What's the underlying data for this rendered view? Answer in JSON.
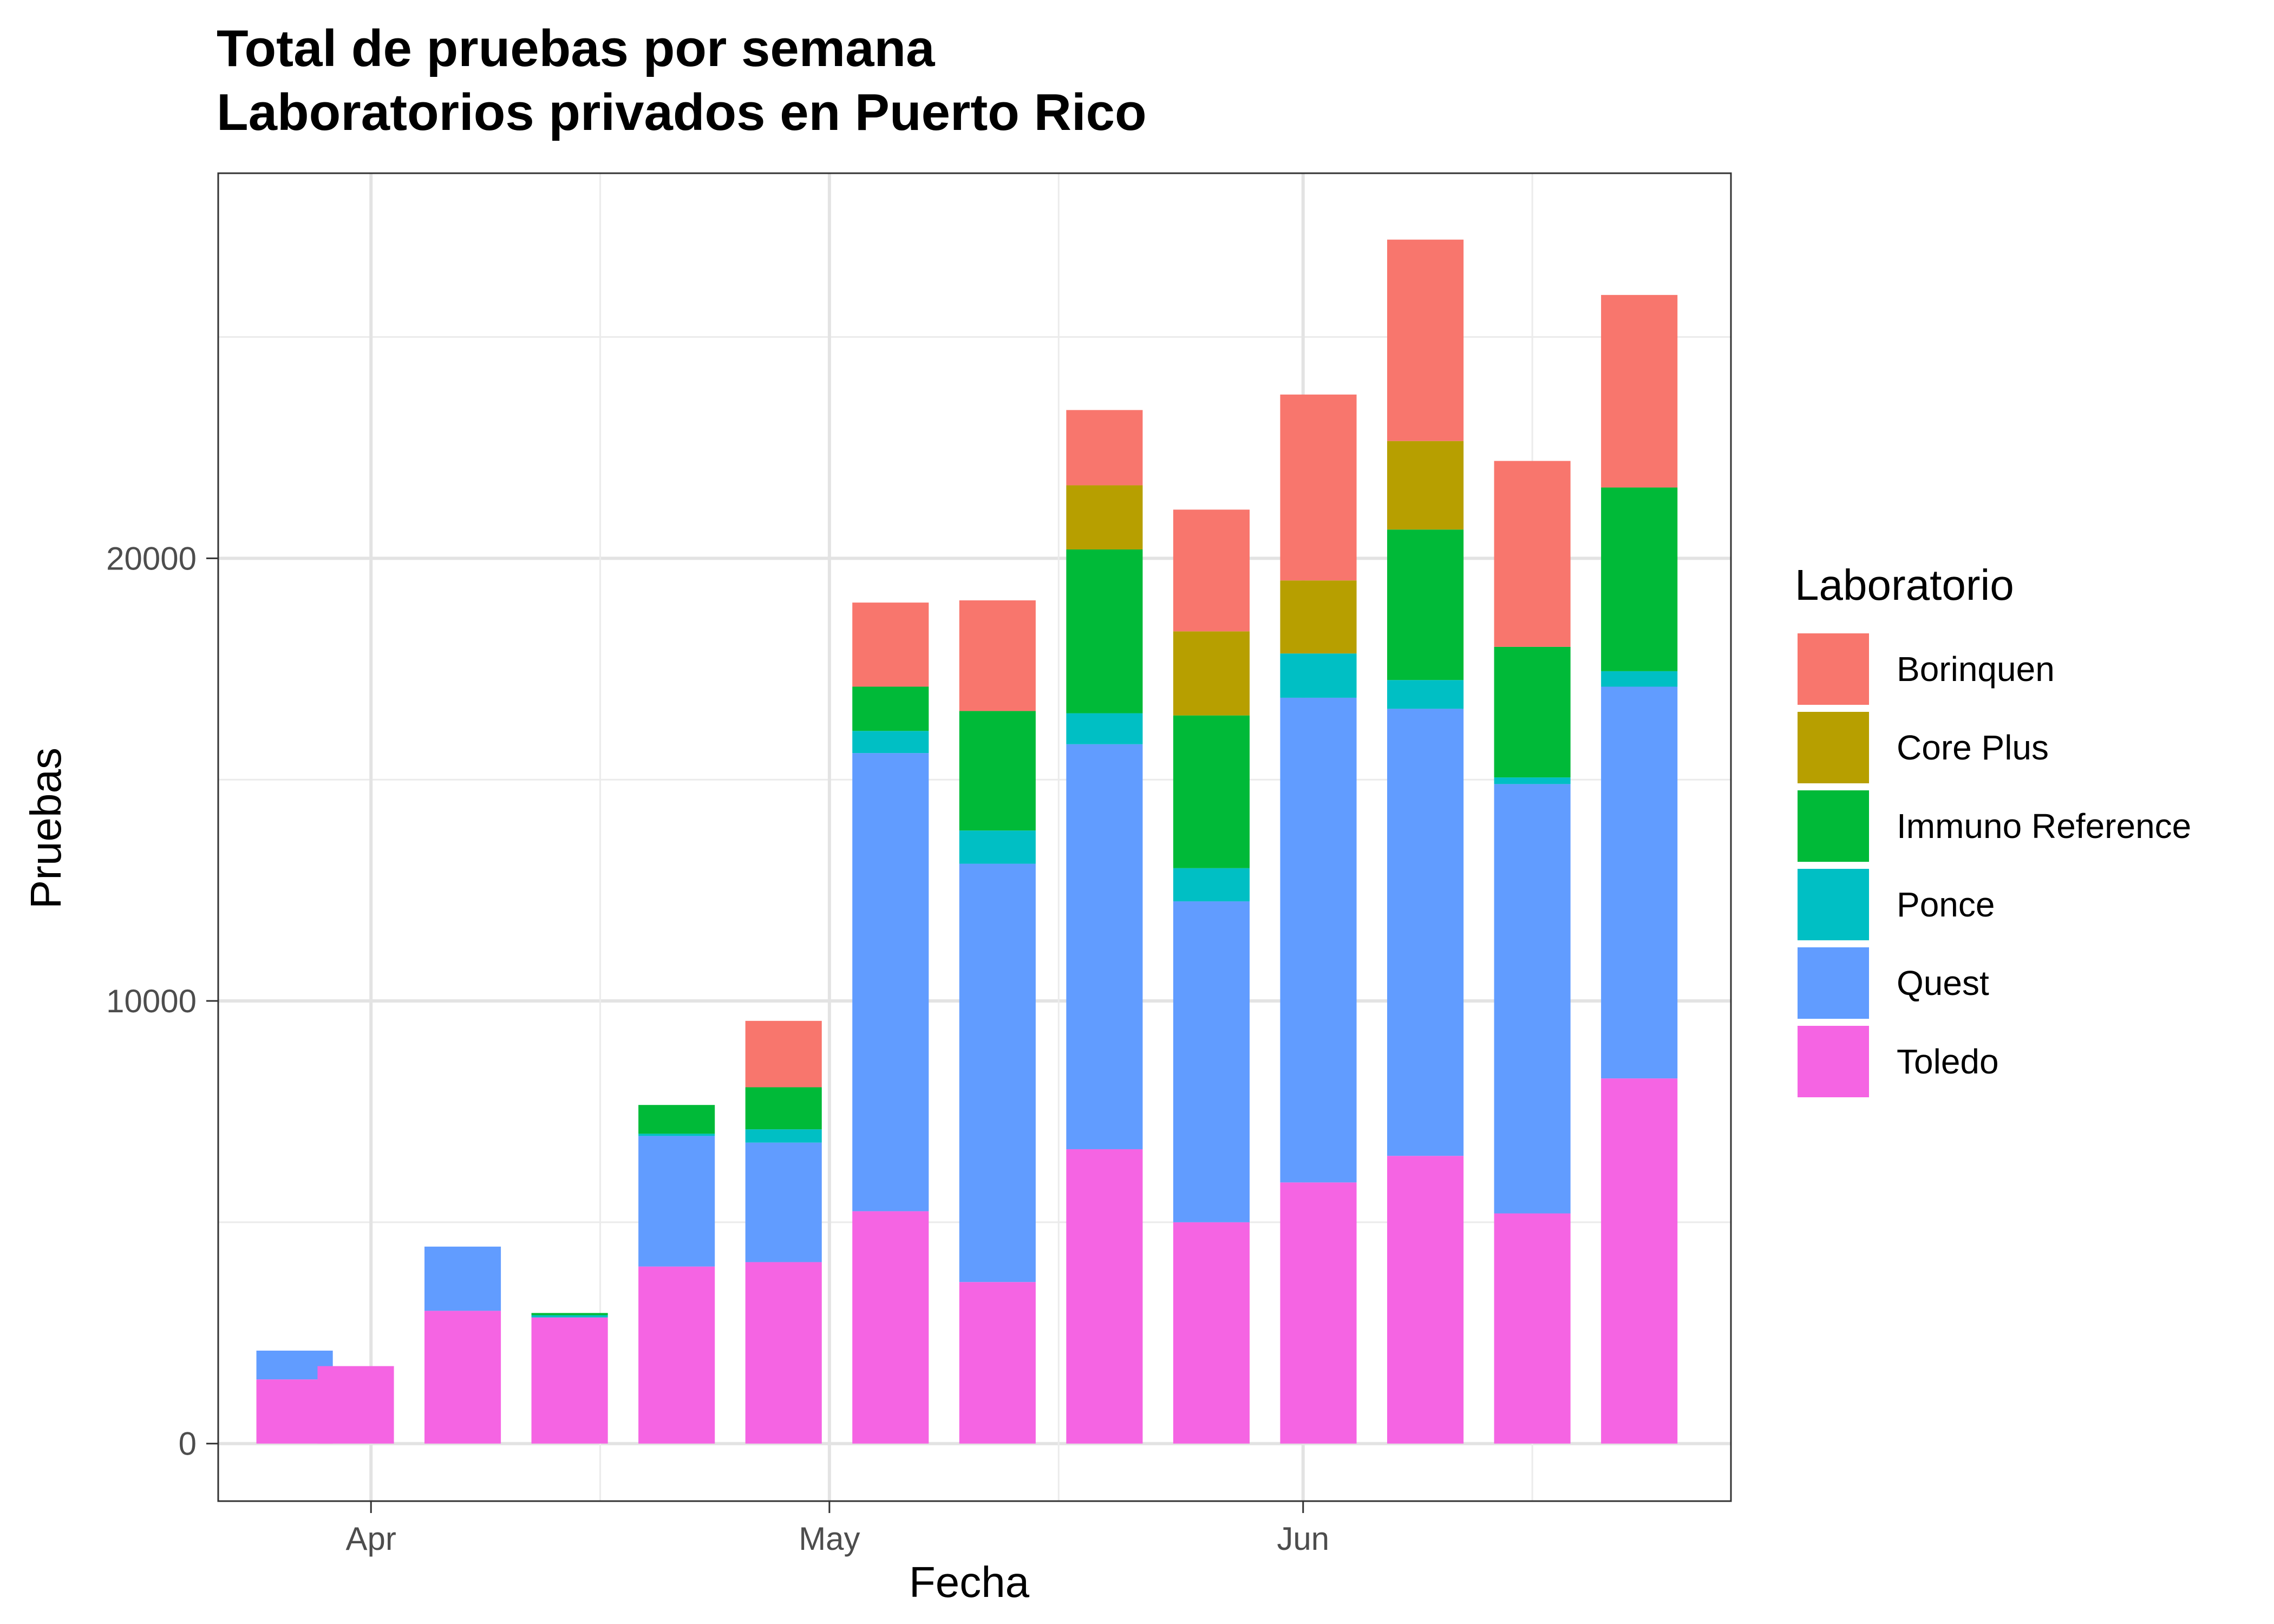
{
  "chart_data": {
    "type": "bar",
    "stacked": true,
    "title": "Total de pruebas por semana",
    "subtitle": "Laboratorios privados en Puerto Rico",
    "xlabel": "Fecha",
    "ylabel": "Pruebas",
    "x_ticks": [
      "Apr",
      "May",
      "Jun"
    ],
    "y_ticks": [
      "0",
      "10000",
      "20000"
    ],
    "ylim": [
      -1300,
      28700
    ],
    "grid": true,
    "legend": {
      "title": "Laboratorio",
      "position": "right",
      "entries": [
        "Borinquen",
        "Core Plus",
        "Immuno Reference",
        "Ponce",
        "Quest",
        "Toledo"
      ]
    },
    "colors": {
      "Borinquen": "#F8766D",
      "Core Plus": "#B79F00",
      "Immuno Reference": "#00BA38",
      "Ponce": "#00BFC4",
      "Quest": "#619CFF",
      "Toledo": "#F564E3"
    },
    "x": [
      "2020-03-27",
      "2020-03-31",
      "2020-04-07",
      "2020-04-14",
      "2020-04-21",
      "2020-04-28",
      "2020-05-05",
      "2020-05-12",
      "2020-05-19",
      "2020-05-26",
      "2020-06-02",
      "2020-06-09",
      "2020-06-16",
      "2020-06-23"
    ],
    "series": [
      {
        "name": "Toledo",
        "values": [
          1450,
          1750,
          3000,
          2850,
          4000,
          4100,
          5250,
          3650,
          6650,
          5000,
          5900,
          6500,
          5200,
          8250
        ]
      },
      {
        "name": "Quest",
        "values": [
          650,
          0,
          1450,
          0,
          2950,
          2700,
          10350,
          9450,
          9150,
          7250,
          10950,
          10100,
          9700,
          8850
        ]
      },
      {
        "name": "Ponce",
        "values": [
          0,
          0,
          0,
          50,
          50,
          300,
          500,
          750,
          700,
          750,
          1000,
          650,
          150,
          350
        ]
      },
      {
        "name": "Immuno Reference",
        "values": [
          0,
          0,
          0,
          50,
          650,
          950,
          1000,
          2700,
          3700,
          3450,
          0,
          3400,
          2950,
          4150
        ]
      },
      {
        "name": "Core Plus",
        "values": [
          0,
          0,
          0,
          0,
          0,
          0,
          0,
          0,
          1450,
          1900,
          1650,
          2000,
          0,
          0
        ]
      },
      {
        "name": "Borinquen",
        "values": [
          0,
          0,
          0,
          0,
          0,
          1500,
          1900,
          2500,
          1700,
          2750,
          4200,
          4550,
          4200,
          4350
        ]
      }
    ]
  }
}
